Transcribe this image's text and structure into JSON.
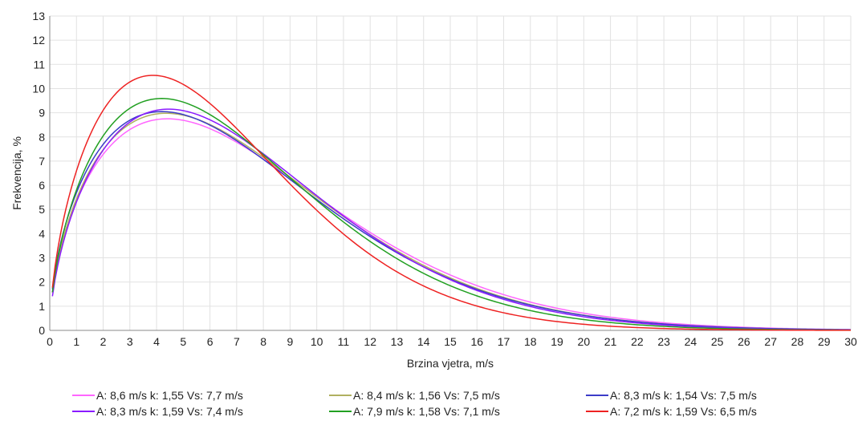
{
  "chart_data": {
    "type": "line",
    "title": "",
    "xlabel": "Brzina vjetra, m/s",
    "ylabel": "Frekvencija, %",
    "xlim": [
      0,
      30
    ],
    "ylim": [
      0,
      13
    ],
    "x_ticks": [
      0,
      1,
      2,
      3,
      4,
      5,
      6,
      7,
      8,
      9,
      10,
      11,
      12,
      13,
      14,
      15,
      16,
      17,
      18,
      19,
      20,
      21,
      22,
      23,
      24,
      25,
      26,
      27,
      28,
      29,
      30
    ],
    "y_ticks": [
      0,
      1,
      2,
      3,
      4,
      5,
      6,
      7,
      8,
      9,
      10,
      11,
      12,
      13
    ],
    "grid": true,
    "legend_position": "bottom",
    "series": [
      {
        "name": "A: 8,6 m/s k: 1,55 Vs: 7,7 m/s",
        "color": "#ff66ff",
        "A": 8.6,
        "k": 1.55
      },
      {
        "name": "A: 8,4 m/s k: 1,56 Vs: 7,5 m/s",
        "color": "#b0b060",
        "A": 8.4,
        "k": 1.56
      },
      {
        "name": "A: 8,3 m/s k: 1,54 Vs: 7,5 m/s",
        "color": "#3c3cc8",
        "A": 8.3,
        "k": 1.54
      },
      {
        "name": "A: 8,3 m/s k: 1,59 Vs: 7,4 m/s",
        "color": "#8a1aff",
        "A": 8.3,
        "k": 1.59
      },
      {
        "name": "A: 7,9 m/s k: 1,58 Vs: 7,1 m/s",
        "color": "#22a022",
        "A": 7.9,
        "k": 1.58
      },
      {
        "name": "A: 7,2 m/s k: 1,59 Vs: 6,5 m/s",
        "color": "#ee2222",
        "A": 7.2,
        "k": 1.59
      }
    ]
  }
}
